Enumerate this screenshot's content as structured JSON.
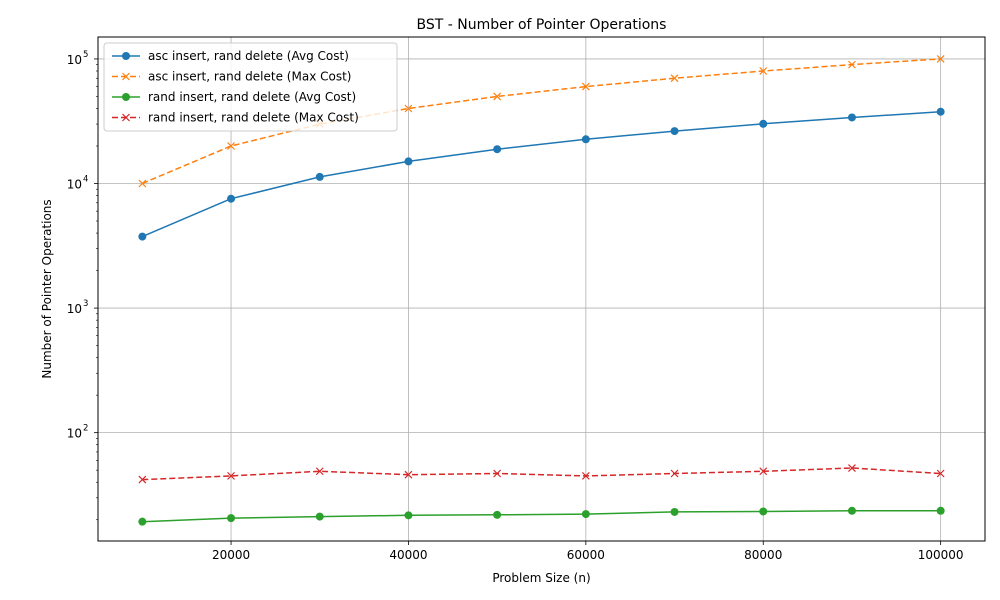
{
  "chart_data": {
    "type": "line",
    "title": "BST - Number of Pointer Operations",
    "xlabel": "Problem Size (n)",
    "ylabel": "Number of Pointer Operations",
    "yscale": "log",
    "xlim": [
      5000,
      105000
    ],
    "ylim": [
      13.5,
      150000
    ],
    "grid": true,
    "legend_position": "top-left",
    "x_ticks": [
      20000,
      40000,
      60000,
      80000,
      100000
    ],
    "x_tick_labels": [
      "20000",
      "40000",
      "60000",
      "80000",
      "100000"
    ],
    "y_ticks": [
      100,
      1000,
      10000,
      100000
    ],
    "y_tick_bases": [
      "10",
      "10",
      "10",
      "10"
    ],
    "y_tick_exponents": [
      "2",
      "3",
      "4",
      "5"
    ],
    "x": [
      10000,
      20000,
      30000,
      40000,
      50000,
      60000,
      70000,
      80000,
      90000,
      100000
    ],
    "series": [
      {
        "name": "asc insert, rand delete (Avg Cost)",
        "color": "#1f77b4",
        "marker": "circle",
        "linestyle": "solid",
        "values": [
          3750,
          7550,
          11300,
          15050,
          18850,
          22650,
          26350,
          30150,
          33900,
          37700
        ]
      },
      {
        "name": "asc insert, rand delete (Max Cost)",
        "color": "#ff7f0e",
        "marker": "x",
        "linestyle": "dashed",
        "values": [
          10000,
          20000,
          30000,
          40000,
          50000,
          60000,
          70000,
          80000,
          90000,
          100000
        ]
      },
      {
        "name": "rand insert, rand delete (Avg Cost)",
        "color": "#2ca02c",
        "marker": "circle",
        "linestyle": "solid",
        "values": [
          19.3,
          20.6,
          21.2,
          21.7,
          21.9,
          22.2,
          23.1,
          23.3,
          23.6,
          23.6
        ]
      },
      {
        "name": "rand insert, rand delete (Max Cost)",
        "color": "#d62728",
        "marker": "x",
        "linestyle": "dashed",
        "values": [
          42,
          45,
          49,
          46,
          47,
          45,
          47,
          49,
          52,
          47
        ]
      }
    ]
  }
}
